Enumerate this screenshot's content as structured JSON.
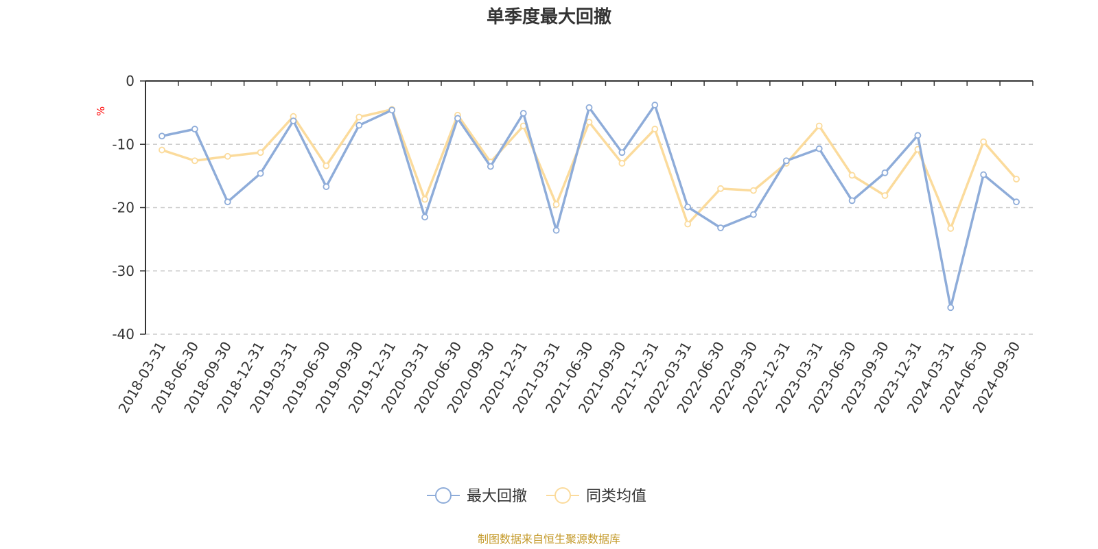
{
  "chart_data": {
    "type": "line",
    "title": "单季度最大回撤",
    "ylabel": "%",
    "ylim": [
      -40,
      0
    ],
    "yticks": [
      0,
      -10,
      -20,
      -30,
      -40
    ],
    "grid": true,
    "legend_position": "bottom",
    "source": "制图数据来自恒生聚源数据库",
    "categories": [
      "2018-03-31",
      "2018-06-30",
      "2018-09-30",
      "2018-12-31",
      "2019-03-31",
      "2019-06-30",
      "2019-09-30",
      "2019-12-31",
      "2020-03-31",
      "2020-06-30",
      "2020-09-30",
      "2020-12-31",
      "2021-03-31",
      "2021-06-30",
      "2021-09-30",
      "2021-12-31",
      "2022-03-31",
      "2022-06-30",
      "2022-09-30",
      "2022-12-31",
      "2023-03-31",
      "2023-06-30",
      "2023-09-30",
      "2023-12-31",
      "2024-03-31",
      "2024-06-30",
      "2024-09-30"
    ],
    "series": [
      {
        "name": "最大回撤",
        "color": "#8eacd9",
        "values": [
          -8.7,
          -7.6,
          -19.1,
          -14.6,
          -6.3,
          -16.7,
          -7.0,
          -4.6,
          -21.5,
          -5.9,
          -13.5,
          -5.1,
          -23.6,
          -4.2,
          -11.3,
          -3.8,
          -19.9,
          -23.2,
          -21.1,
          -12.6,
          -10.7,
          -18.9,
          -14.5,
          -8.6,
          -35.8,
          -14.8,
          -19.1
        ]
      },
      {
        "name": "同类均值",
        "color": "#fbdb9c",
        "values": [
          -10.9,
          -12.6,
          -11.9,
          -11.3,
          -5.6,
          -13.4,
          -5.7,
          -4.5,
          -18.7,
          -5.4,
          -12.8,
          -7.1,
          -19.5,
          -6.5,
          -13.0,
          -7.6,
          -22.6,
          -17.0,
          -17.3,
          -13.0,
          -7.1,
          -14.9,
          -18.1,
          -10.8,
          -23.3,
          -9.6,
          -15.5
        ]
      }
    ]
  }
}
